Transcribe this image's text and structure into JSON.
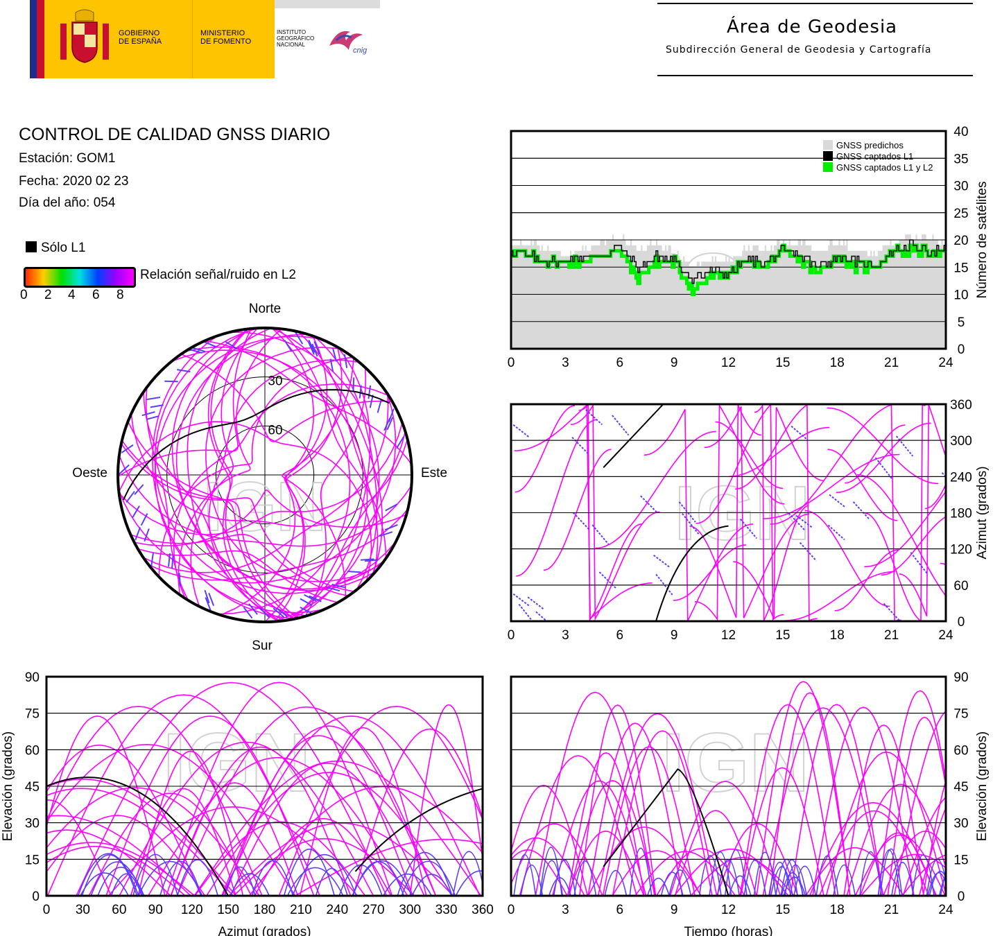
{
  "header": {
    "gov1": "GOBIERNO",
    "gov2": "DE ESPAÑA",
    "min1": "MINISTERIO",
    "min2": "DE FOMENTO",
    "ign1": "INSTITUTO",
    "ign2": "GEOGRÁFICO",
    "ign3": "NACIONAL",
    "cnig": "cnig",
    "area_title": "Área de Geodesia",
    "area_subtitle": "Subdirección General de Geodesia y Cartografía"
  },
  "report": {
    "title": "CONTROL DE CALIDAD GNSS DIARIO",
    "station": "Estación: GOM1",
    "date": "Fecha: 2020 02 23",
    "doy": "Día del año: 054"
  },
  "legend": {
    "l1_only": "Sólo L1",
    "snr_label": "Relación señal/ruido en L2",
    "ticks": [
      "0",
      "2",
      "4",
      "6",
      "8"
    ],
    "colors": [
      "#ff2a00",
      "#ffd000",
      "#00e000",
      "#00e0e0",
      "#0040ff",
      "#9900ff",
      "#ff00ff"
    ]
  },
  "watermark": "IGN",
  "colors": {
    "track": "#ff00ff",
    "track_low": "#5a3cff",
    "l1": "#000000",
    "predicted": "#d9d9d9",
    "captured_l1l2": "#00ee00"
  },
  "chart_data": [
    {
      "type": "line",
      "ylabel": "Número de satélites",
      "x_ticks": [
        "0",
        "3",
        "6",
        "9",
        "12",
        "15",
        "18",
        "21",
        "24"
      ],
      "y_ticks": [
        "0",
        "5",
        "10",
        "15",
        "20",
        "25",
        "30",
        "35",
        "40"
      ],
      "xlim": [
        0,
        24
      ],
      "ylim": [
        0,
        40
      ],
      "legend": [
        "GNSS predichos",
        "GNSS captados L1",
        "GNSS captados L1 y L2"
      ],
      "legend_position": "top-right",
      "series": [
        {
          "name": "GNSS predichos",
          "x": [
            0,
            1,
            2,
            3,
            4,
            5,
            6,
            7,
            8,
            9,
            10,
            11,
            12,
            13,
            14,
            15,
            16,
            17,
            18,
            19,
            20,
            21,
            22,
            23,
            24
          ],
          "values": [
            19,
            19,
            18,
            17,
            18,
            19,
            20,
            18,
            19,
            17,
            15,
            16,
            16,
            18,
            18,
            19,
            19,
            18,
            19,
            18,
            17,
            19,
            20,
            20,
            19
          ]
        },
        {
          "name": "GNSS captados L1",
          "x": [
            0,
            1,
            2,
            3,
            4,
            5,
            6,
            7,
            8,
            9,
            10,
            11,
            12,
            13,
            14,
            15,
            16,
            17,
            18,
            19,
            20,
            21,
            22,
            23,
            24
          ],
          "values": [
            18,
            17,
            16,
            16,
            17,
            17,
            19,
            15,
            17,
            16,
            13,
            14,
            14,
            16,
            16,
            18,
            17,
            15,
            17,
            16,
            15,
            18,
            19,
            18,
            18
          ]
        },
        {
          "name": "GNSS captados L1 y L2",
          "x": [
            0,
            1,
            2,
            3,
            4,
            5,
            6,
            7,
            8,
            9,
            10,
            11,
            12,
            13,
            14,
            15,
            16,
            17,
            18,
            19,
            20,
            21,
            22,
            23,
            24
          ],
          "values": [
            18,
            17,
            16,
            16,
            16,
            17,
            18,
            13,
            16,
            16,
            11,
            13,
            14,
            16,
            15,
            18,
            16,
            14,
            17,
            15,
            15,
            18,
            18,
            18,
            17
          ]
        }
      ]
    },
    {
      "type": "scatter",
      "ylabel": "Azimut (grados)",
      "x_ticks": [
        "0",
        "3",
        "6",
        "9",
        "12",
        "15",
        "18",
        "21",
        "24"
      ],
      "y_ticks": [
        "0",
        "60",
        "120",
        "180",
        "240",
        "300",
        "360"
      ],
      "xlim": [
        0,
        24
      ],
      "ylim": [
        0,
        360
      ]
    },
    {
      "type": "scatter",
      "xlabel": "Azimut (grados)",
      "ylabel": "Elevación (grados)",
      "x_ticks": [
        "0",
        "30",
        "60",
        "90",
        "120",
        "150",
        "180",
        "210",
        "240",
        "270",
        "300",
        "330",
        "360"
      ],
      "y_ticks": [
        "0",
        "15",
        "30",
        "45",
        "60",
        "75",
        "90"
      ],
      "xlim": [
        0,
        360
      ],
      "ylim": [
        0,
        90
      ]
    },
    {
      "type": "scatter",
      "xlabel": "Tiempo (horas)",
      "ylabel": "Elevación (grados)",
      "x_ticks": [
        "0",
        "3",
        "6",
        "9",
        "12",
        "15",
        "18",
        "21",
        "24"
      ],
      "y_ticks": [
        "0",
        "15",
        "30",
        "45",
        "60",
        "75",
        "90"
      ],
      "xlim": [
        0,
        24
      ],
      "ylim": [
        0,
        90
      ]
    },
    {
      "type": "scatter",
      "polar": true,
      "labels": {
        "north": "Norte",
        "south": "Sur",
        "east": "Este",
        "west": "Oeste"
      },
      "rings": [
        "30",
        "60"
      ]
    }
  ]
}
